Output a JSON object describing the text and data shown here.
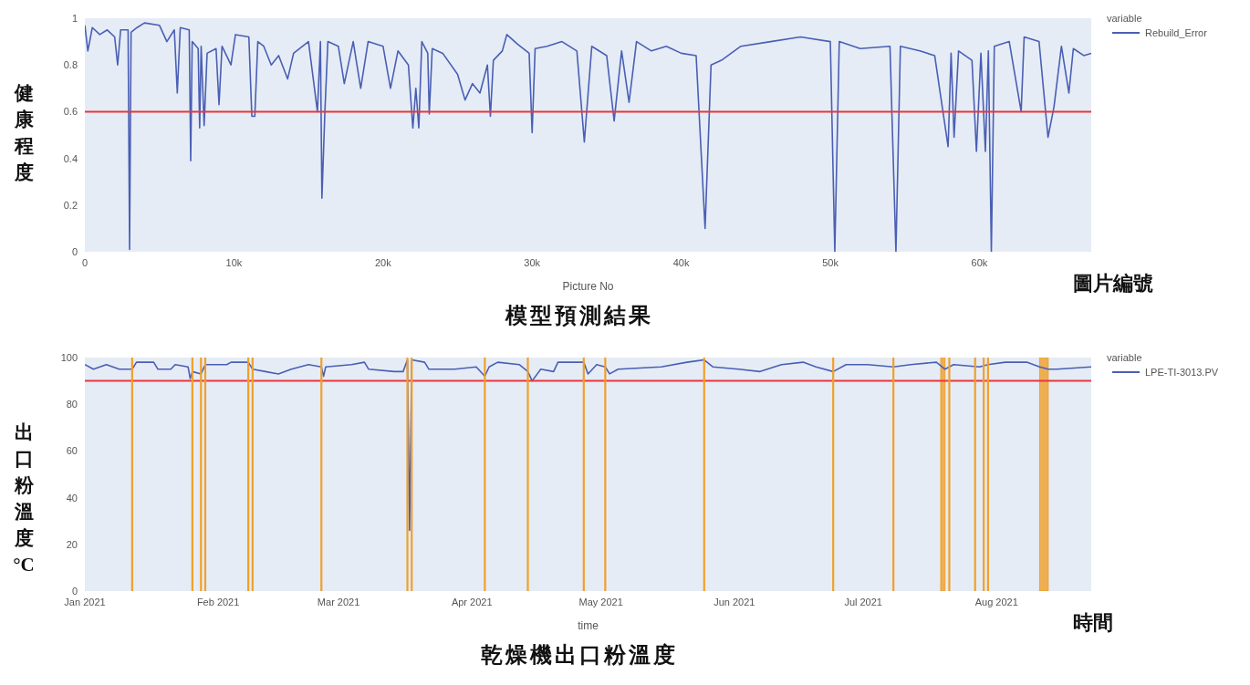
{
  "chart_data": [
    {
      "type": "line",
      "title": "模型預測結果",
      "xlabel": "Picture No",
      "ylabel": "健康程度",
      "legend_title": "variable",
      "legend": "right",
      "annotations": [
        "圖片編號"
      ],
      "xlim": [
        0,
        67500
      ],
      "xticks": [
        0,
        {
          "value": 10000,
          "label": "10k"
        },
        {
          "value": 20000,
          "label": "20k"
        },
        {
          "value": 30000,
          "label": "30k"
        },
        {
          "value": 40000,
          "label": "40k"
        },
        {
          "value": 50000,
          "label": "50k"
        },
        {
          "value": 60000,
          "label": "60k"
        }
      ],
      "ylim": [
        0,
        1
      ],
      "yticks": [
        0,
        0.2,
        0.4,
        0.6,
        0.8,
        1
      ],
      "ref_lines": [
        {
          "axis": "y",
          "value": 0.6,
          "color": "#e8363f"
        }
      ],
      "series": [
        {
          "name": "Rebuild_Error",
          "color": "#4a5fb3",
          "x": [
            0,
            200,
            500,
            1000,
            1500,
            2000,
            2200,
            2400,
            2900,
            3000,
            3100,
            3500,
            4000,
            5000,
            5500,
            6000,
            6200,
            6400,
            7000,
            7100,
            7200,
            7600,
            7700,
            7800,
            8000,
            8200,
            8800,
            9000,
            9200,
            9800,
            10100,
            11000,
            11200,
            11400,
            11600,
            12000,
            12500,
            13000,
            13600,
            14000,
            15000,
            15600,
            15800,
            15900,
            16100,
            16300,
            17000,
            17400,
            18000,
            18500,
            19000,
            20000,
            20500,
            21000,
            21700,
            22000,
            22200,
            22400,
            22600,
            23000,
            23100,
            23300,
            24000,
            25000,
            25500,
            26000,
            26500,
            27000,
            27200,
            27400,
            28000,
            28300,
            29000,
            29800,
            30000,
            30200,
            31000,
            32000,
            33000,
            33500,
            34000,
            35000,
            35500,
            36000,
            36500,
            37000,
            38000,
            39000,
            40000,
            41000,
            41600,
            42000,
            42700,
            44000,
            46000,
            48000,
            50000,
            50300,
            50600,
            52000,
            54000,
            54400,
            54700,
            56000,
            57000,
            57900,
            58100,
            58300,
            58600,
            59500,
            59800,
            60100,
            60400,
            60600,
            60800,
            61000,
            62000,
            62800,
            63000,
            64000,
            64600,
            65000,
            65500,
            66000,
            66300,
            67000,
            67500
          ],
          "values": [
            0.97,
            0.86,
            0.96,
            0.93,
            0.95,
            0.92,
            0.8,
            0.95,
            0.95,
            0.01,
            0.94,
            0.96,
            0.98,
            0.97,
            0.9,
            0.95,
            0.68,
            0.96,
            0.95,
            0.39,
            0.9,
            0.87,
            0.53,
            0.88,
            0.54,
            0.85,
            0.87,
            0.63,
            0.88,
            0.8,
            0.93,
            0.92,
            0.58,
            0.58,
            0.9,
            0.88,
            0.8,
            0.84,
            0.74,
            0.85,
            0.9,
            0.6,
            0.9,
            0.23,
            0.6,
            0.9,
            0.88,
            0.72,
            0.9,
            0.7,
            0.9,
            0.88,
            0.7,
            0.86,
            0.8,
            0.53,
            0.7,
            0.53,
            0.9,
            0.85,
            0.59,
            0.87,
            0.85,
            0.76,
            0.65,
            0.72,
            0.68,
            0.8,
            0.58,
            0.82,
            0.86,
            0.93,
            0.89,
            0.85,
            0.51,
            0.87,
            0.88,
            0.9,
            0.86,
            0.47,
            0.88,
            0.84,
            0.56,
            0.86,
            0.64,
            0.9,
            0.86,
            0.88,
            0.85,
            0.84,
            0.1,
            0.8,
            0.82,
            0.88,
            0.9,
            0.92,
            0.9,
            0.0,
            0.9,
            0.87,
            0.88,
            0.0,
            0.88,
            0.86,
            0.84,
            0.45,
            0.85,
            0.49,
            0.86,
            0.82,
            0.43,
            0.85,
            0.43,
            0.86,
            0.0,
            0.88,
            0.9,
            0.6,
            0.92,
            0.9,
            0.49,
            0.62,
            0.88,
            0.68,
            0.87,
            0.84,
            0.85
          ]
        }
      ]
    },
    {
      "type": "line",
      "title": "乾燥機出口粉溫度",
      "xlabel": "time",
      "ylabel": "出口粉溫度°C",
      "legend_title": "variable",
      "legend": "right",
      "annotations": [
        "時間"
      ],
      "xlim": [
        "2021-01-01",
        "2021-08-23"
      ],
      "xticks": [
        {
          "value": "2021-01-01",
          "label": "Jan 2021"
        },
        {
          "value": "2021-02-01",
          "label": "Feb 2021"
        },
        {
          "value": "2021-03-01",
          "label": "Mar 2021"
        },
        {
          "value": "2021-04-01",
          "label": "Apr 2021"
        },
        {
          "value": "2021-05-01",
          "label": "May 2021"
        },
        {
          "value": "2021-06-01",
          "label": "Jun 2021"
        },
        {
          "value": "2021-07-01",
          "label": "Jul 2021"
        },
        {
          "value": "2021-08-01",
          "label": "Aug 2021"
        }
      ],
      "ylim": [
        0,
        100
      ],
      "yticks": [
        0,
        20,
        40,
        60,
        80,
        100
      ],
      "ref_lines": [
        {
          "axis": "y",
          "value": 90,
          "color": "#e8363f"
        },
        {
          "axis": "x",
          "value": "2021-01-12",
          "color": "#f0a02a"
        },
        {
          "axis": "x",
          "value": "2021-01-26",
          "color": "#f0a02a"
        },
        {
          "axis": "x",
          "value": "2021-01-28",
          "color": "#f0a02a"
        },
        {
          "axis": "x",
          "value": "2021-01-29",
          "color": "#f0a02a"
        },
        {
          "axis": "x",
          "value": "2021-02-08",
          "color": "#f0a02a"
        },
        {
          "axis": "x",
          "value": "2021-02-09",
          "color": "#f0a02a"
        },
        {
          "axis": "x",
          "value": "2021-02-25",
          "color": "#f0a02a"
        },
        {
          "axis": "x",
          "value": "2021-03-17",
          "color": "#f0a02a"
        },
        {
          "axis": "x",
          "value": "2021-03-18",
          "color": "#f0a02a"
        },
        {
          "axis": "x",
          "value": "2021-04-04",
          "color": "#f0a02a"
        },
        {
          "axis": "x",
          "value": "2021-04-14",
          "color": "#f0a02a"
        },
        {
          "axis": "x",
          "value": "2021-04-27",
          "color": "#f0a02a"
        },
        {
          "axis": "x",
          "value": "2021-05-02",
          "color": "#f0a02a"
        },
        {
          "axis": "x",
          "value": "2021-05-25",
          "color": "#f0a02a"
        },
        {
          "axis": "x",
          "value": "2021-06-24",
          "color": "#f0a02a"
        },
        {
          "axis": "x",
          "value": "2021-07-08",
          "color": "#f0a02a"
        },
        {
          "axis": "x",
          "value": "2021-07-21",
          "color": "#f0a02a"
        },
        {
          "axis": "x",
          "value": "2021-07-27",
          "color": "#f0a02a"
        },
        {
          "axis": "x",
          "value": "2021-07-29",
          "color": "#f0a02a"
        },
        {
          "axis": "x",
          "value": "2021-07-30",
          "color": "#f0a02a"
        }
      ],
      "bands": [
        {
          "axis": "x",
          "from": "2021-07-19",
          "to": "2021-07-20",
          "color": "#f0a02a"
        },
        {
          "axis": "x",
          "from": "2021-08-11",
          "to": "2021-08-13",
          "color": "#f0a02a"
        }
      ],
      "series": [
        {
          "name": "LPE-TI-3013.PV",
          "color": "#4a5fb3",
          "x": [
            "2021-01-01",
            "2021-01-03",
            "2021-01-06",
            "2021-01-09",
            "2021-01-12",
            "2021-01-13",
            "2021-01-17",
            "2021-01-18",
            "2021-01-21",
            "2021-01-22",
            "2021-01-25",
            "2021-01-25T12:00",
            "2021-01-26",
            "2021-01-28",
            "2021-01-29",
            "2021-02-03",
            "2021-02-04",
            "2021-02-08",
            "2021-02-09",
            "2021-02-12",
            "2021-02-15",
            "2021-02-18",
            "2021-02-22",
            "2021-02-25",
            "2021-02-25T12:00",
            "2021-02-26",
            "2021-03-04",
            "2021-03-07",
            "2021-03-08",
            "2021-03-14",
            "2021-03-16",
            "2021-03-17",
            "2021-03-17T12:00",
            "2021-03-18",
            "2021-03-21",
            "2021-03-22",
            "2021-03-28",
            "2021-04-02",
            "2021-04-04",
            "2021-04-05",
            "2021-04-07",
            "2021-04-12",
            "2021-04-14",
            "2021-04-15",
            "2021-04-17",
            "2021-04-20",
            "2021-04-21",
            "2021-04-27",
            "2021-04-28",
            "2021-04-30",
            "2021-05-02",
            "2021-05-03",
            "2021-05-05",
            "2021-05-15",
            "2021-05-21",
            "2021-05-25",
            "2021-05-27",
            "2021-06-02",
            "2021-06-07",
            "2021-06-12",
            "2021-06-17",
            "2021-06-20",
            "2021-06-24",
            "2021-06-27",
            "2021-07-02",
            "2021-07-08",
            "2021-07-12",
            "2021-07-18",
            "2021-07-20",
            "2021-07-22",
            "2021-07-28",
            "2021-07-30",
            "2021-08-03",
            "2021-08-08",
            "2021-08-11",
            "2021-08-13",
            "2021-08-15",
            "2021-08-23"
          ],
          "values": [
            97,
            95,
            97,
            95,
            95,
            98,
            98,
            95,
            95,
            97,
            96,
            91,
            94,
            93,
            97,
            97,
            98,
            98,
            95,
            94,
            93,
            95,
            97,
            96,
            92,
            96,
            97,
            98,
            95,
            94,
            94,
            99,
            26,
            99,
            98,
            95,
            95,
            96,
            92,
            96,
            98,
            97,
            94,
            90,
            95,
            94,
            98,
            98,
            93,
            97,
            96,
            93,
            95,
            96,
            98,
            99,
            96,
            95,
            94,
            97,
            98,
            96,
            94,
            97,
            97,
            96,
            97,
            98,
            95,
            97,
            96,
            97,
            98,
            98,
            96,
            95,
            95,
            96
          ]
        }
      ]
    }
  ]
}
